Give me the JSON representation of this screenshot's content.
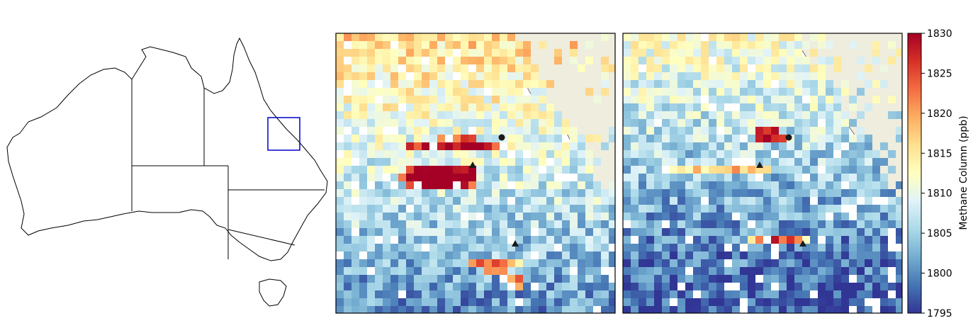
{
  "colors": {
    "land": "#EEEDDE",
    "coast": "#333333",
    "inset_box": "#0000CC",
    "marker": "#1a1a1a",
    "colormap_RdYlBu_r": [
      "#313695",
      "#4575b4",
      "#74add1",
      "#abd9e9",
      "#e0f3f8",
      "#ffffbf",
      "#fee090",
      "#fdae61",
      "#f46d43",
      "#d73027",
      "#a50026"
    ]
  },
  "overview_map": {
    "region": "Australia",
    "state_borders": true,
    "inset_box_region": "central Queensland coast"
  },
  "panels": [
    {
      "id": "left",
      "plumes": [
        {
          "marker": "circle",
          "level": 1830
        },
        {
          "marker": "triangle",
          "level": 1830
        },
        {
          "marker": "triangle",
          "level": 1830
        }
      ]
    },
    {
      "id": "right",
      "plumes": [
        {
          "marker": "circle",
          "level": 1830
        },
        {
          "marker": "triangle",
          "level": 1825
        },
        {
          "marker": "triangle",
          "level": 1830
        }
      ]
    }
  ],
  "colorbar": {
    "label": "Methane Column (ppb)",
    "min": 1795,
    "max": 1830,
    "ticks": [
      "1830",
      "1825",
      "1820",
      "1815",
      "1810",
      "1805",
      "1800",
      "1795"
    ]
  }
}
